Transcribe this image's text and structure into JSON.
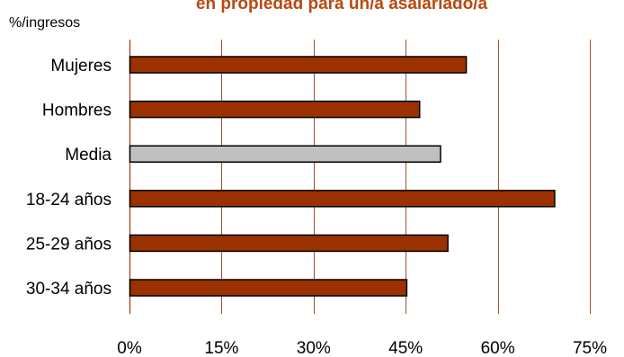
{
  "chart_data": {
    "type": "bar",
    "orientation": "horizontal",
    "title": "en propiedad para un/a asalariado/a",
    "unit_label": "%/ingresos",
    "categories": [
      "Mujeres",
      "Hombres",
      "Media",
      "18-24 años",
      "25-29 años",
      "30-34 años"
    ],
    "values": [
      54.8,
      47.2,
      50.6,
      69.2,
      51.8,
      45.1
    ],
    "xlim": [
      0,
      75
    ],
    "xticks": [
      "0%",
      "15%",
      "30%",
      "45%",
      "60%",
      "75%"
    ],
    "grid": "vertical",
    "colors": {
      "bar": "#9b3100",
      "highlight": "#c0c0c0",
      "highlight_category": "Media",
      "grid": "#a0522d",
      "title": "#b84a12",
      "border": "#000000"
    }
  }
}
